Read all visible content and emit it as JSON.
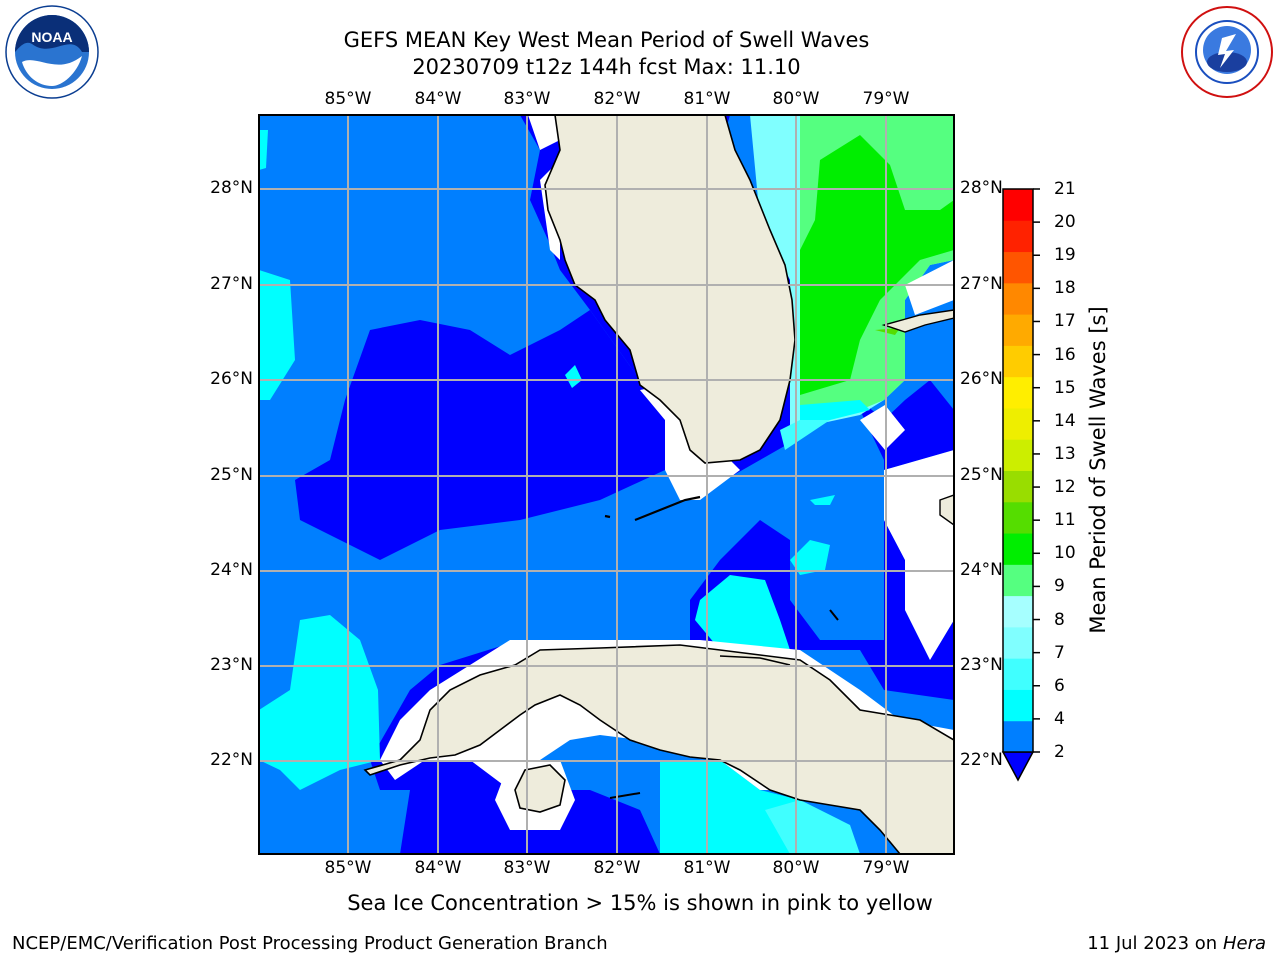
{
  "title": {
    "line1": "GEFS MEAN Key West Mean Period of Swell Waves",
    "line2": "20230709 t12z 144h fcst   Max: 11.10"
  },
  "map": {
    "lon_labels": [
      "85°W",
      "84°W",
      "83°W",
      "82°W",
      "81°W",
      "80°W",
      "79°W"
    ],
    "lat_labels": [
      "28°N",
      "27°N",
      "26°N",
      "25°N",
      "24°N",
      "23°N",
      "22°N"
    ],
    "region": "Key West / Florida Straits",
    "colors": {
      "land": "#eeecdc",
      "no_data": "#ffffff",
      "grid": "#b0b0b0"
    }
  },
  "colorbar": {
    "title": "Mean Period of Swell Waves [s]",
    "levels": [
      "2",
      "4",
      "6",
      "7",
      "8",
      "9",
      "10",
      "11",
      "12",
      "13",
      "14",
      "15",
      "16",
      "17",
      "18",
      "19",
      "20",
      "21"
    ],
    "colors": [
      "#0000ff",
      "#007fff",
      "#00ffff",
      "#40ffff",
      "#80ffff",
      "#a6ffff",
      "#55ff80",
      "#00ee00",
      "#55dd00",
      "#99dd00",
      "#ccee00",
      "#eeee00",
      "#ffee00",
      "#ffcc00",
      "#ffaa00",
      "#ff8800",
      "#ff5500",
      "#ff2200",
      "#ff0000"
    ]
  },
  "caption": "Sea Ice Concentration > 15% is shown in pink to yellow",
  "footer": {
    "left": "NCEP/EMC/Verification Post Processing Product Generation Branch",
    "right_date": "11 Jul 2023 on ",
    "right_host": "Hera"
  },
  "logos": {
    "left": "noaa-logo",
    "right": "national-weather-service-logo"
  }
}
